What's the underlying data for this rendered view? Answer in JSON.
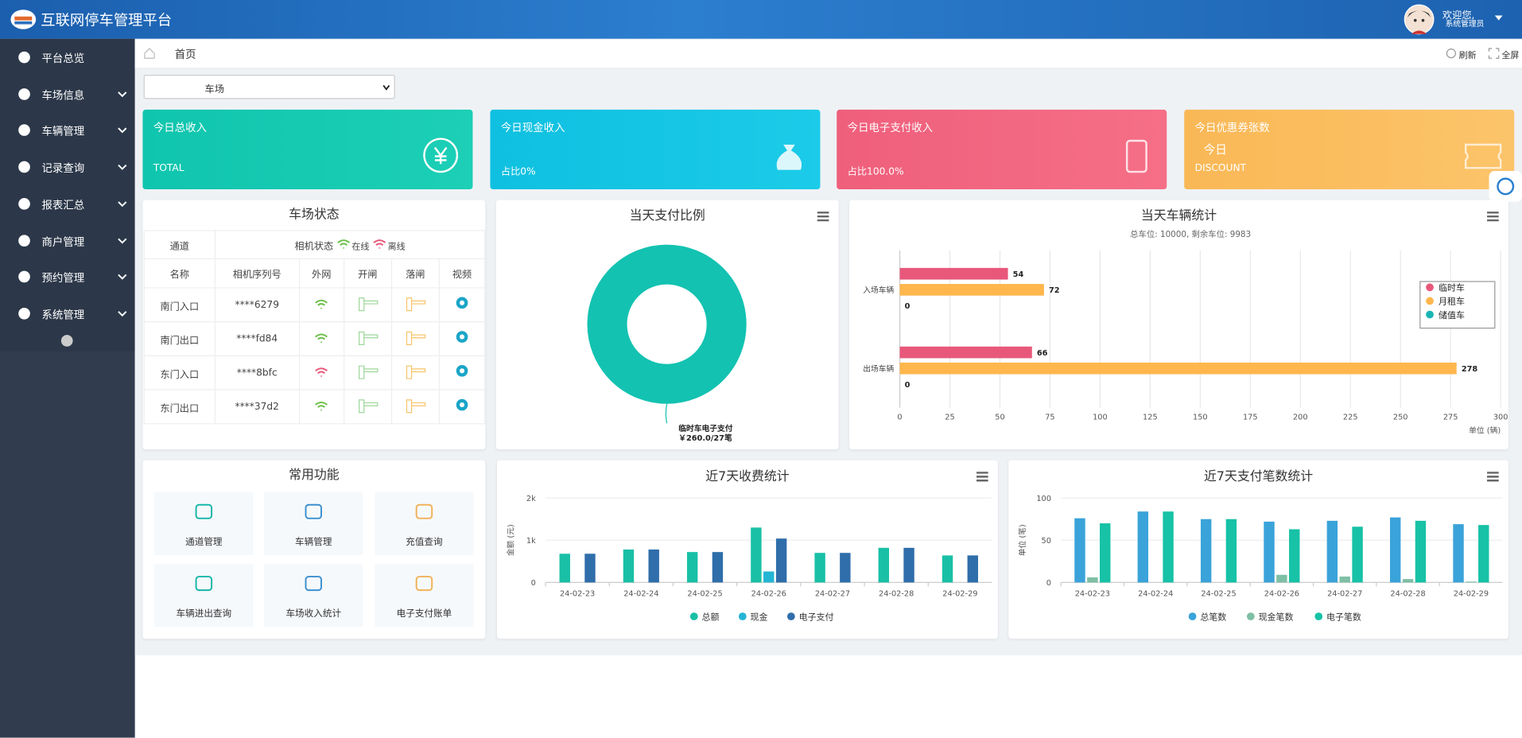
{
  "header": {
    "title": "互联网停车管理平台",
    "welcome": "欢迎您,",
    "user": "系统管理员"
  },
  "sidebar": {
    "menu": [
      "平台总览",
      "车场信息",
      "车辆管理",
      "记录查询",
      "报表汇总",
      "商户管理",
      "预约管理",
      "系统管理"
    ]
  },
  "breadcrumb": {
    "home": "首页",
    "refresh": "刷新",
    "fullscreen": "全屏"
  },
  "lot_select": "车场",
  "cards": [
    {
      "title": "今日总收入",
      "footer": "TOTAL"
    },
    {
      "title": "今日现金收入",
      "footer": "占比0%"
    },
    {
      "title": "今日电子支付收入",
      "footer": "占比100.0%"
    },
    {
      "title": "今日优惠券张数",
      "value": "今日",
      "footer": "DISCOUNT"
    }
  ],
  "status_panel": {
    "title": "车场状态",
    "channel_header": "通道",
    "camera_status": "相机状态",
    "online": "在线",
    "offline": "离线",
    "columns": [
      "名称",
      "相机序列号",
      "外网",
      "开闸",
      "落闸",
      "视频"
    ],
    "rows": [
      [
        "南门入口",
        "****6279"
      ],
      [
        "南门出口",
        "****fd84"
      ],
      [
        "东门入口",
        "****8bfc"
      ],
      [
        "东门出口",
        "****37d2"
      ]
    ]
  },
  "functions": {
    "title": "常用功能",
    "items": [
      "通道管理",
      "车辆管理",
      "充值查询",
      "车辆进出查询",
      "车场收入统计",
      "电子支付账单"
    ]
  },
  "chart_data": [
    {
      "type": "pie",
      "title": "当天支付比例",
      "categories": [
        "临时车电子支付"
      ],
      "values": [
        260
      ],
      "value_labels": [
        "￥260.0/27笔"
      ],
      "colors": [
        "#13c2b1"
      ]
    },
    {
      "type": "bar",
      "horizontal": true,
      "title": "当天车辆统计",
      "subtitle": "总车位: 10000, 剩余车位: 9983",
      "categories": [
        "入场车辆",
        "出场车辆"
      ],
      "series": [
        {
          "name": "临时车",
          "color": "#e8587a",
          "values": [
            54,
            66
          ]
        },
        {
          "name": "月租车",
          "color": "#ffb74d",
          "values": [
            72,
            278
          ]
        },
        {
          "name": "储值车",
          "color": "#1bb5b5",
          "values": [
            0,
            0
          ]
        }
      ],
      "xlim": [
        0,
        300
      ],
      "xticks": [
        0,
        25,
        50,
        75,
        100,
        125,
        150,
        175,
        200,
        225,
        250,
        275,
        300
      ],
      "xlabel": "单位 (辆)",
      "grid": true,
      "legend": "right"
    },
    {
      "type": "bar",
      "title": "近7天收费统计",
      "categories": [
        "24-02-23",
        "24-02-24",
        "24-02-25",
        "24-02-26",
        "24-02-27",
        "24-02-28",
        "24-02-29"
      ],
      "series": [
        {
          "name": "总额",
          "color": "#19c0a6",
          "values": [
            680,
            780,
            720,
            1300,
            700,
            820,
            640
          ]
        },
        {
          "name": "现金",
          "color": "#24b5d4",
          "values": [
            0,
            0,
            0,
            260,
            0,
            0,
            0
          ]
        },
        {
          "name": "电子支付",
          "color": "#2f6eaa",
          "values": [
            680,
            780,
            720,
            1040,
            700,
            820,
            640
          ]
        }
      ],
      "ylim": [
        0,
        2000
      ],
      "yticks": [
        0,
        {
          "value": 1000,
          "label": "1k"
        },
        {
          "value": 2000,
          "label": "2k"
        }
      ],
      "ylabel": "金额 (元)",
      "grid": true,
      "legend": "bottom"
    },
    {
      "type": "bar",
      "title": "近7天支付笔数统计",
      "categories": [
        "24-02-23",
        "24-02-24",
        "24-02-25",
        "24-02-26",
        "24-02-27",
        "24-02-28",
        "24-02-29"
      ],
      "series": [
        {
          "name": "总笔数",
          "color": "#3aa3d9",
          "values": [
            76,
            84,
            75,
            72,
            73,
            77,
            69
          ]
        },
        {
          "name": "现金笔数",
          "color": "#7fbfa5",
          "values": [
            6,
            0,
            0,
            9,
            7,
            4,
            1
          ]
        },
        {
          "name": "电子笔数",
          "color": "#17c2a6",
          "values": [
            70,
            84,
            75,
            63,
            66,
            73,
            68
          ]
        }
      ],
      "ylim": [
        0,
        100
      ],
      "yticks": [
        0,
        50,
        100
      ],
      "ylabel": "单位 (笔)",
      "grid": true,
      "legend": "bottom"
    }
  ]
}
